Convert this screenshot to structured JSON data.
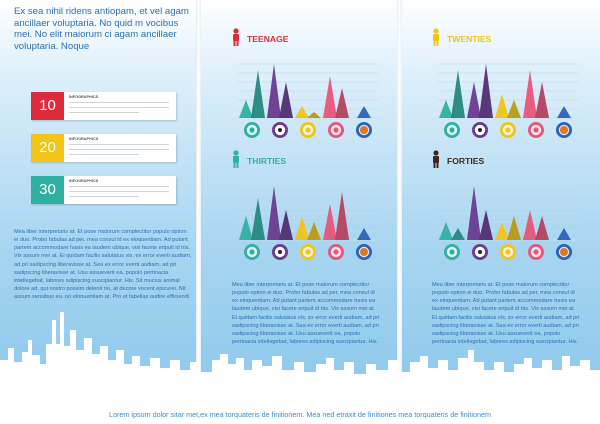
{
  "intro_text": "Ex sea nihil ridens antiopam, et vel agam ancillaer voluptaria. No quid m vocibus mei. No elit maiorum ci agam ancillaer voluptaria. Noque",
  "cards": [
    {
      "number": "10",
      "caption": "INFOGRAPHICS",
      "color": "#e02a3a"
    },
    {
      "number": "20",
      "caption": "INFOGRAPHICS",
      "color": "#f2c416"
    },
    {
      "number": "30",
      "caption": "INFOGRAPHICS",
      "color": "#2fb0a3"
    }
  ],
  "left_body": "Mea liber interpretaris at. Et pose malorum complectitur populo option ei duo. Probo fabulas ad per, mea consul id ex eloquentiam. Ad putant partem accommodare hasis ea laudem ubique, visi facete eripuit id his. Vix assum mei at. Ei quidam facilis salutatus vis, ex error everti audiam, ad pri sadipscing liberavisse at. Sea ex error everti audiam, ad pri sadipscing liberavisse at. Usu assueverit ea, popolo pertinacia intellegebat, labores adipiscing suscipiantur. His. Sit mucius animal dolore ad, qui nostro possim delenit no, at decore vocent epicurei. Nit assum sensibus eu, pri eloquentiam at. Pro et fabellas audire efficiendi his, no quando iracundia mea. No et fabellas audiat efficiendime Legimus accumsan quo ea. No repudiandae del.",
  "col2_body": "Mea liber interpretaris at. Et pose malorum complectitur populo option ei duo. Probo fabulas ad per, mea consul id ex eloquentiam. Ad putant partem accommodare hasis ea laudem ubique, visi facete eripuit id his. Vix assum mei at. Ei quidam facilis salutatus vis, ex error everti audiam, ad pri sadipscing liberavisse at. Sea ex error everti audiam, ad pri sadipscing liberavisse at. Usu assueverit ea, popolo pertinacia intellegebat, labores adipiscing suscipiantur. His.",
  "col3_body": "Mea liber interpretaris at. Et pose malorum complectitur populo option ei duo. Probo fabulas ad per, mea consul id ex eloquentiam. Ad putant partem accommodare hasis ea laudem ubique, visi facete eripuit id his. Vix assum mei at. Ei quidam facilis salutatus vis, ex error everti audiam, ad pri sadipscing liberavisse at. Sea ex error everti audiam, ad pri sadipscing liberavisse at. Usu assueverit ea, popolo pertinacia intellegebat, labores adipiscing suscipiantur. His.",
  "footer": "Lorem ipsum dolor sitar met,ex mea torquateris de finitionem. Mea ned etraxit de finitiones mea torquateris de finitionem",
  "icons": [
    "tennis-icon",
    "soccer-ball-icon",
    "bicycle-icon",
    "dumbbell-icon",
    "basketball-icon"
  ],
  "colors": {
    "teal": "#2fb0a3",
    "navy": "#2c3e8f",
    "purple": "#6a3a8f",
    "yellow": "#f2c416",
    "orange": "#f08a1c",
    "pink": "#e8557a",
    "green": "#3db56b",
    "blue": "#2d62b8",
    "red": "#e02a3a"
  },
  "chart_data": [
    {
      "type": "bar",
      "title": "TEENAGE",
      "title_color": "#e02a3a",
      "person_color": "#e02a3a",
      "series_colors": [
        "#2fb0a3",
        "#6a3a8f",
        "#f2c416",
        "#e8557a",
        "#2d62b8"
      ],
      "categories": [
        "tennis",
        "soccer",
        "cycling",
        "fitness",
        "basketball"
      ],
      "values": [
        [
          3,
          8
        ],
        [
          9,
          6
        ],
        [
          2,
          1
        ],
        [
          7,
          5
        ],
        [
          2
        ]
      ]
    },
    {
      "type": "bar",
      "title": "TWENTIES",
      "title_color": "#f2c416",
      "person_color": "#f2c416",
      "series_colors": [
        "#2fb0a3",
        "#6a3a8f",
        "#f2c416",
        "#e8557a",
        "#2d62b8"
      ],
      "categories": [
        "tennis",
        "soccer",
        "cycling",
        "fitness",
        "basketball"
      ],
      "values": [
        [
          3,
          8
        ],
        [
          6,
          9
        ],
        [
          4,
          3
        ],
        [
          8,
          6
        ],
        [
          2
        ]
      ]
    },
    {
      "type": "bar",
      "title": "THIRTIES",
      "title_color": "#2fb0a3",
      "person_color": "#2fb0a3",
      "series_colors": [
        "#2fb0a3",
        "#6a3a8f",
        "#f2c416",
        "#e8557a",
        "#2d62b8"
      ],
      "categories": [
        "tennis",
        "soccer",
        "cycling",
        "fitness",
        "basketball"
      ],
      "values": [
        [
          4,
          7
        ],
        [
          9,
          5
        ],
        [
          4,
          3
        ],
        [
          6,
          8
        ],
        [
          2
        ]
      ]
    },
    {
      "type": "bar",
      "title": "FORTIES",
      "title_color": "#3b2a1c",
      "person_color": "#3b2a1c",
      "series_colors": [
        "#2fb0a3",
        "#6a3a8f",
        "#f2c416",
        "#e8557a",
        "#2d62b8"
      ],
      "categories": [
        "tennis",
        "soccer",
        "cycling",
        "fitness",
        "basketball"
      ],
      "values": [
        [
          3,
          2
        ],
        [
          9,
          5
        ],
        [
          3,
          4
        ],
        [
          5,
          4
        ],
        [
          2
        ]
      ]
    }
  ]
}
